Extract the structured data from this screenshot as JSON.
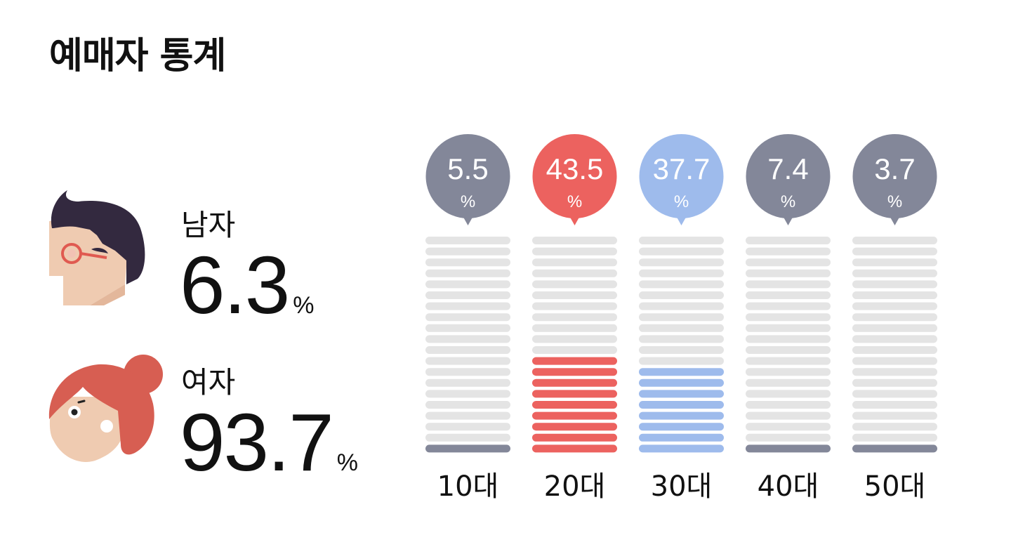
{
  "title": "예매자 통계",
  "gender": {
    "male": {
      "label": "남자",
      "value": "6.3",
      "unit": "%"
    },
    "female": {
      "label": "여자",
      "value": "93.7",
      "unit": "%"
    }
  },
  "colors": {
    "male_hair": "#33293f",
    "skin": "#efcbb1",
    "glasses": "#e05a50",
    "female_hair": "#d75e52",
    "empty_bar": "#e4e4e4",
    "default_series": "#838799",
    "highlight_1": "#ec625f",
    "highlight_2": "#9ebbec"
  },
  "chart_data": {
    "type": "bar",
    "title": "",
    "xlabel": "",
    "ylabel": "",
    "unit": "%",
    "categories": [
      "10대",
      "20대",
      "30대",
      "40대",
      "50대"
    ],
    "values": [
      5.5,
      43.5,
      37.7,
      7.4,
      3.7
    ],
    "value_labels": [
      "5.5",
      "43.5",
      "37.7",
      "7.4",
      "3.7"
    ],
    "segments_total": 20,
    "filled_segments": [
      1,
      9,
      8,
      1,
      1
    ],
    "colors": [
      "#838799",
      "#ec625f",
      "#9ebbec",
      "#838799",
      "#838799"
    ],
    "grid": false,
    "legend": "none"
  }
}
